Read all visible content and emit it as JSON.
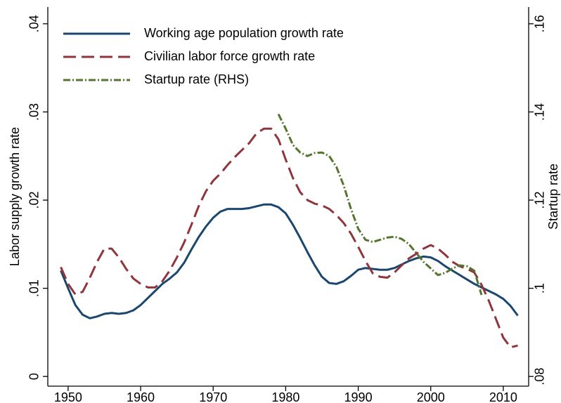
{
  "chart_data": {
    "type": "line",
    "y_label": "Labor supply growth rate",
    "y2_label": "Startup rate",
    "x": [
      1949,
      1950,
      1951,
      1952,
      1953,
      1954,
      1955,
      1956,
      1957,
      1958,
      1959,
      1960,
      1961,
      1962,
      1963,
      1964,
      1965,
      1966,
      1967,
      1968,
      1969,
      1970,
      1971,
      1972,
      1973,
      1974,
      1975,
      1976,
      1977,
      1978,
      1979,
      1980,
      1981,
      1982,
      1983,
      1984,
      1985,
      1986,
      1987,
      1988,
      1989,
      1990,
      1991,
      1992,
      1993,
      1994,
      1995,
      1996,
      1997,
      1998,
      1999,
      2000,
      2001,
      2002,
      2003,
      2004,
      2005,
      2006,
      2007,
      2008,
      2009,
      2010,
      2011,
      2012
    ],
    "series": [
      {
        "name": "Working age population growth rate",
        "color": "#1a476f",
        "dash": "none",
        "values": [
          0.012,
          0.01,
          0.0081,
          0.007,
          0.0066,
          0.0068,
          0.0071,
          0.0072,
          0.0071,
          0.0072,
          0.0075,
          0.0081,
          0.0089,
          0.0097,
          0.0105,
          0.0111,
          0.0118,
          0.0129,
          0.0144,
          0.0158,
          0.017,
          0.018,
          0.0187,
          0.019,
          0.019,
          0.019,
          0.0191,
          0.0193,
          0.0195,
          0.0195,
          0.0192,
          0.0185,
          0.0172,
          0.0157,
          0.0141,
          0.0126,
          0.0113,
          0.0106,
          0.0105,
          0.0108,
          0.0114,
          0.0121,
          0.0123,
          0.0122,
          0.0121,
          0.0121,
          0.0123,
          0.0127,
          0.0131,
          0.0134,
          0.0136,
          0.0135,
          0.0131,
          0.0125,
          0.012,
          0.0115,
          0.011,
          0.0105,
          0.0101,
          0.0097,
          0.0093,
          0.0088,
          0.008,
          0.0069
        ]
      },
      {
        "name": "Civilian labor force growth rate",
        "color": "#90353b",
        "dash": "18 8",
        "values": [
          0.0124,
          0.0105,
          0.0093,
          0.0096,
          0.0112,
          0.013,
          0.0145,
          0.0145,
          0.0135,
          0.0122,
          0.0111,
          0.0105,
          0.0101,
          0.0101,
          0.0108,
          0.012,
          0.0135,
          0.0152,
          0.0172,
          0.0193,
          0.021,
          0.0222,
          0.023,
          0.024,
          0.0249,
          0.0257,
          0.0265,
          0.0276,
          0.0281,
          0.0281,
          0.0269,
          0.0246,
          0.0225,
          0.0209,
          0.02,
          0.0196,
          0.0194,
          0.019,
          0.0183,
          0.0174,
          0.0162,
          0.0147,
          0.0131,
          0.0117,
          0.0113,
          0.0112,
          0.0118,
          0.0126,
          0.0134,
          0.0139,
          0.0145,
          0.0149,
          0.0145,
          0.0138,
          0.013,
          0.0125,
          0.0122,
          0.0118,
          0.0104,
          0.0086,
          0.0065,
          0.0044,
          0.0033,
          0.0035
        ]
      },
      {
        "name": "Startup rate (RHS)",
        "color": "#55752f",
        "dash": "10 3 2 3",
        "axis": "y2",
        "values": [
          null,
          null,
          null,
          null,
          null,
          null,
          null,
          null,
          null,
          null,
          null,
          null,
          null,
          null,
          null,
          null,
          null,
          null,
          null,
          null,
          null,
          null,
          null,
          null,
          null,
          null,
          null,
          null,
          null,
          null,
          0.1395,
          0.1362,
          0.1325,
          0.1308,
          0.13,
          0.1307,
          0.1308,
          0.13,
          0.1275,
          0.1233,
          0.118,
          0.1135,
          0.111,
          0.1105,
          0.111,
          0.1115,
          0.1117,
          0.1112,
          0.11,
          0.108,
          0.106,
          0.1045,
          0.103,
          0.1035,
          0.1045,
          0.1052,
          0.105,
          0.104,
          0.0985,
          null,
          null,
          null,
          null,
          null
        ]
      }
    ],
    "xlim": [
      1947.2,
      2013.5
    ],
    "xticks": [
      1950,
      1960,
      1970,
      1980,
      1990,
      2000,
      2010
    ],
    "ylim": [
      -0.0011,
      0.0419
    ],
    "yticks": [
      0,
      {
        "value": 0.01,
        "label": ".01"
      },
      {
        "value": 0.02,
        "label": ".02"
      },
      {
        "value": 0.03,
        "label": ".03"
      },
      {
        "value": 0.04,
        "label": ".04"
      }
    ],
    "y2lim": [
      0.0778,
      0.1638
    ],
    "y2ticks": [
      {
        "value": 0.08,
        "label": ".08"
      },
      {
        "value": 0.1,
        "label": ".1"
      },
      {
        "value": 0.12,
        "label": ".12"
      },
      {
        "value": 0.14,
        "label": ".14"
      },
      {
        "value": 0.16,
        "label": ".16"
      }
    ],
    "legend": "top-left"
  }
}
